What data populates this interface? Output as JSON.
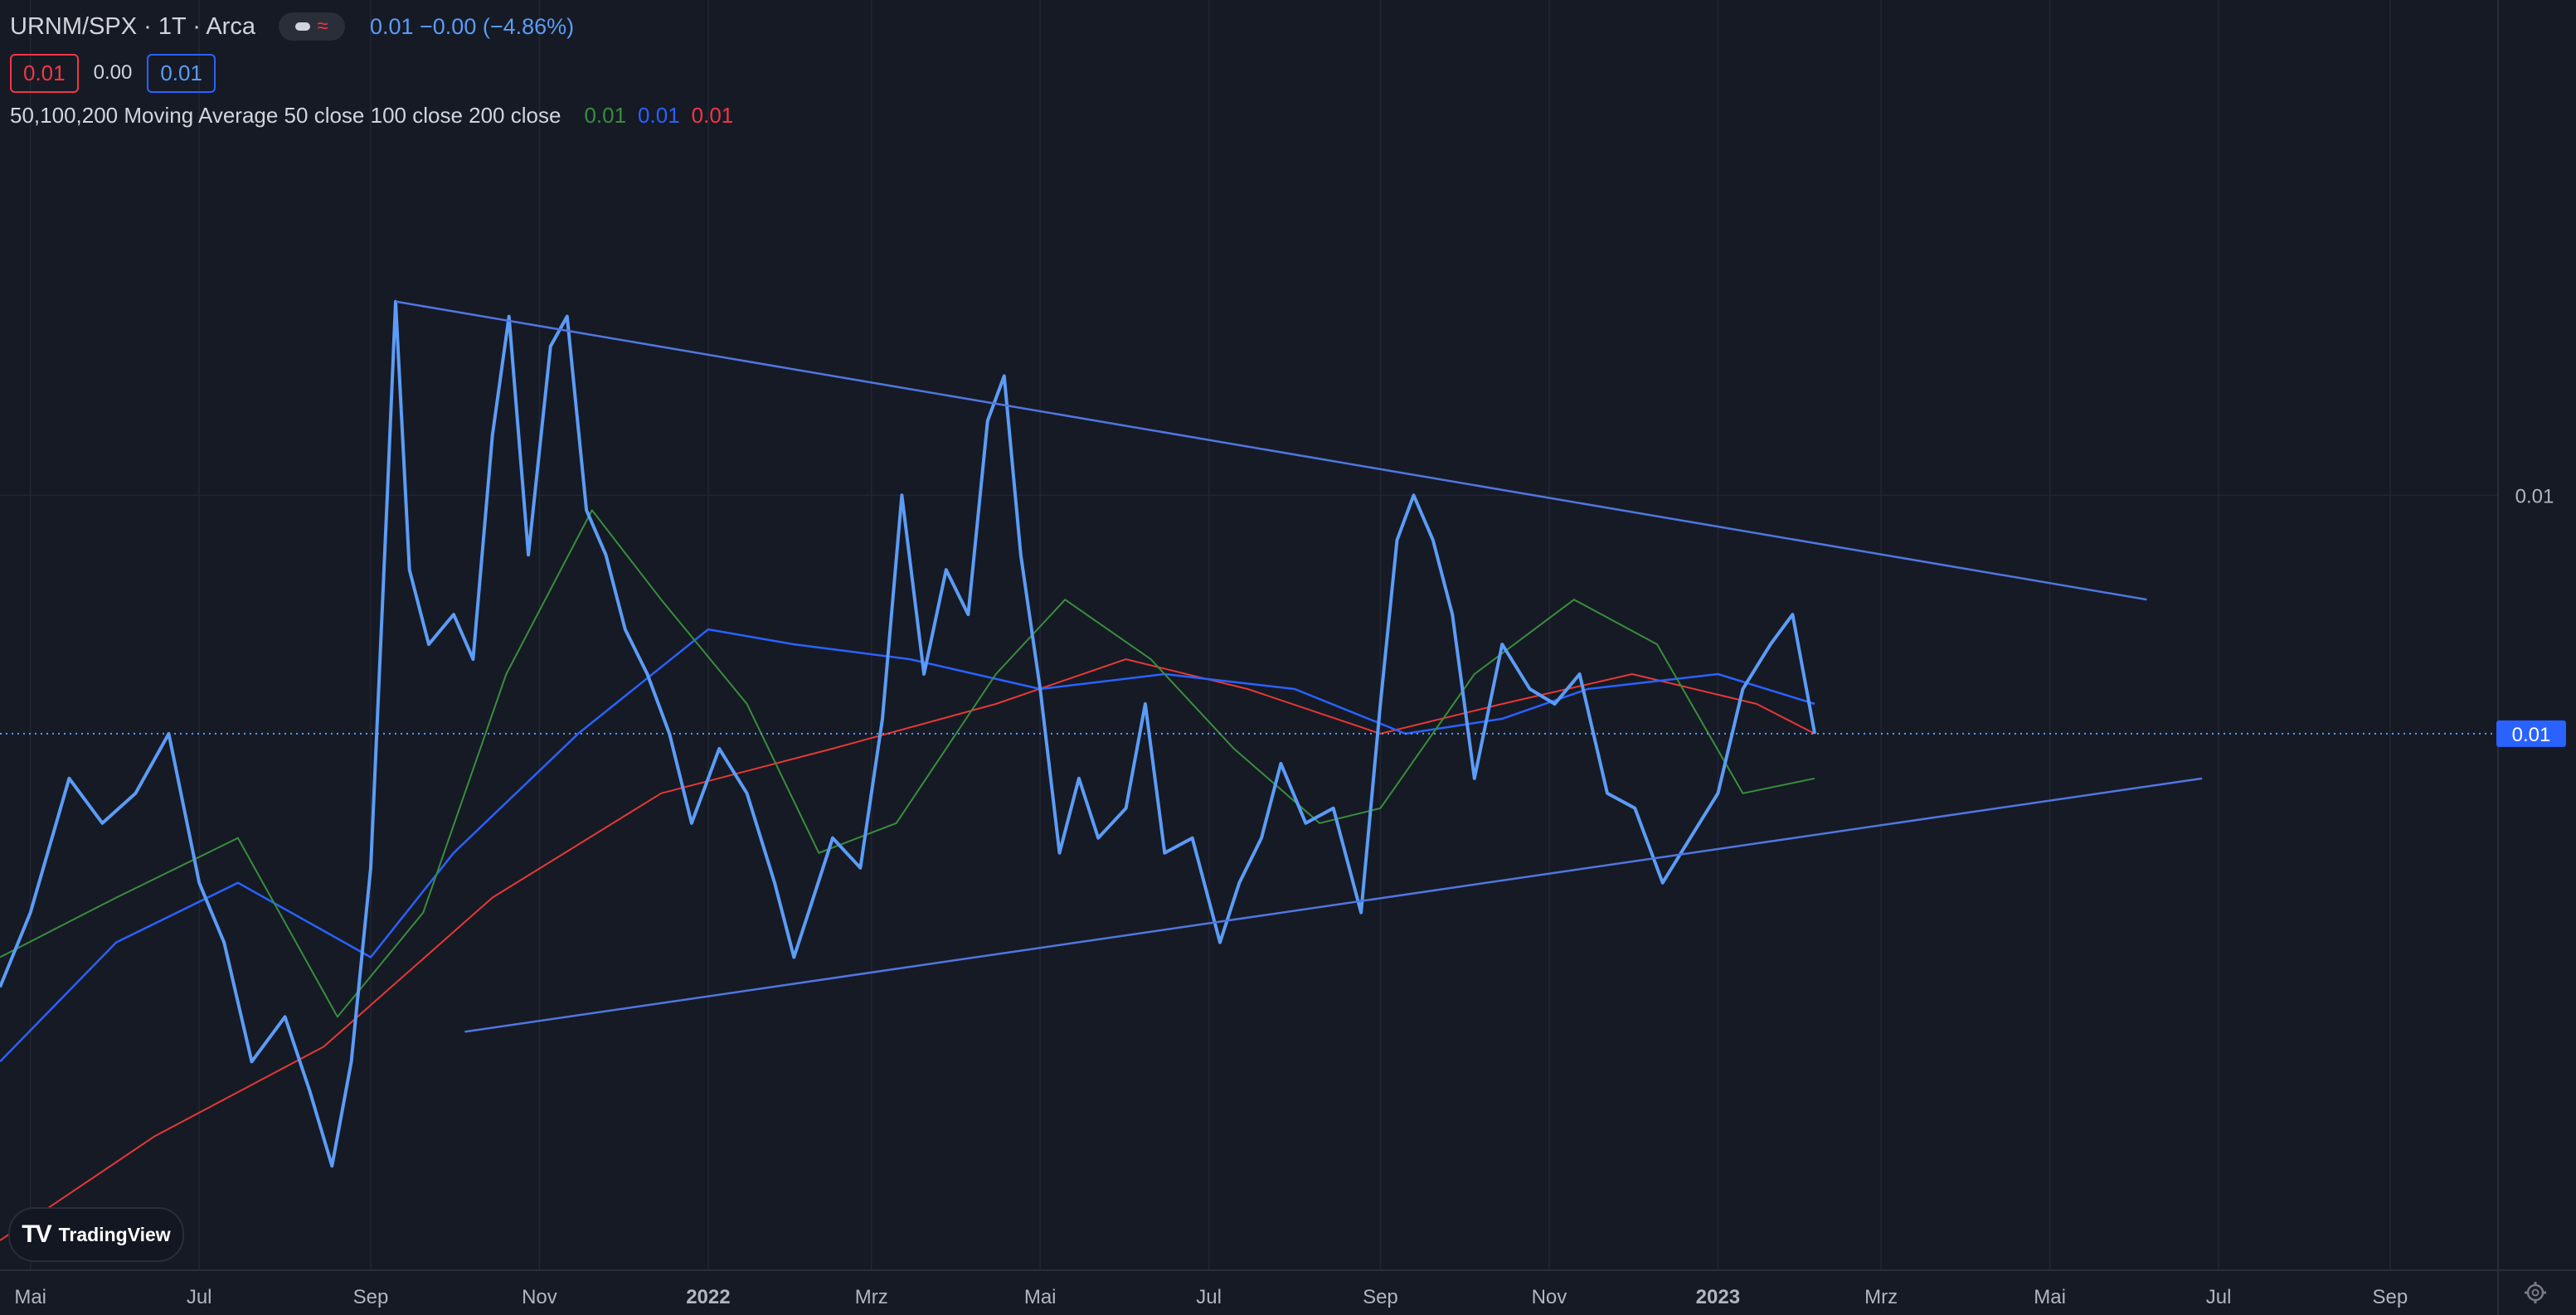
{
  "header": {
    "symbol": "URNM/SPX · 1T · Arca",
    "quote": "0.01  −0.00 (−4.86%)",
    "box_red": "0.01",
    "mid_value": "0.00",
    "box_blue": "0.01"
  },
  "indicator": {
    "label": "50,100,200 Moving Average 50 close 100 close 200 close",
    "values": [
      "0.01",
      "0.01",
      "0.01"
    ],
    "colors": [
      "#388e3c",
      "#2962ff",
      "#f23645"
    ]
  },
  "logo_text": "TradingView",
  "icons": {
    "settings": "gear-icon",
    "logo": "tradingview-logo"
  },
  "colors": {
    "price": "#5b9cf6",
    "ma50": "#388e3c",
    "ma100": "#2962ff",
    "ma200": "#e53935",
    "background": "#161a25"
  },
  "chart_data": {
    "type": "line",
    "y_axis_labels": [
      "0.01",
      "0.01"
    ],
    "last_price_label": "0.01",
    "x_tick_labels": [
      "Mai",
      "Jul",
      "Sep",
      "Nov",
      "2022",
      "Mrz",
      "Mai",
      "Jul",
      "Sep",
      "Nov",
      "2023",
      "Mrz",
      "Mai",
      "Jul",
      "Sep"
    ],
    "x_tick_dates": [
      "2021-05-01",
      "2021-07-01",
      "2021-09-01",
      "2021-11-01",
      "2022-01-01",
      "2022-03-01",
      "2022-05-01",
      "2022-07-01",
      "2022-09-01",
      "2022-11-01",
      "2023-01-01",
      "2023-03-01",
      "2023-05-01",
      "2023-07-01",
      "2023-09-01"
    ],
    "bold_ticks": [
      "2022",
      "2023"
    ],
    "series": [
      {
        "points": [
          [
            "2021-04-20",
            0.0117
          ],
          [
            "2021-05-01",
            0.0122
          ],
          [
            "2021-05-15",
            0.0131
          ],
          [
            "2021-05-27",
            0.0128
          ],
          [
            "2021-06-08",
            0.013
          ],
          [
            "2021-06-20",
            0.0134
          ],
          [
            "2021-07-01",
            0.0124
          ],
          [
            "2021-07-10",
            0.012
          ],
          [
            "2021-07-20",
            0.0112
          ],
          [
            "2021-08-01",
            0.0115
          ],
          [
            "2021-08-10",
            0.011
          ],
          [
            "2021-08-18",
            0.0105
          ],
          [
            "2021-08-25",
            0.0112
          ],
          [
            "2021-09-01",
            0.0125
          ],
          [
            "2021-09-07",
            0.015
          ],
          [
            "2021-09-10",
            0.0163
          ],
          [
            "2021-09-15",
            0.0145
          ],
          [
            "2021-09-22",
            0.014
          ],
          [
            "2021-10-01",
            0.0142
          ],
          [
            "2021-10-08",
            0.0139
          ],
          [
            "2021-10-15",
            0.0154
          ],
          [
            "2021-10-21",
            0.0162
          ],
          [
            "2021-10-28",
            0.0146
          ],
          [
            "2021-11-05",
            0.016
          ],
          [
            "2021-11-11",
            0.0162
          ],
          [
            "2021-11-18",
            0.0149
          ],
          [
            "2021-11-25",
            0.0146
          ],
          [
            "2021-12-02",
            0.0141
          ],
          [
            "2021-12-10",
            0.0138
          ],
          [
            "2021-12-18",
            0.0134
          ],
          [
            "2021-12-26",
            0.0128
          ],
          [
            "2022-01-05",
            0.0133
          ],
          [
            "2022-01-15",
            0.013
          ],
          [
            "2022-01-25",
            0.0124
          ],
          [
            "2022-02-01",
            0.0119
          ],
          [
            "2022-02-08",
            0.0123
          ],
          [
            "2022-02-15",
            0.0127
          ],
          [
            "2022-02-25",
            0.0125
          ],
          [
            "2022-03-05",
            0.0135
          ],
          [
            "2022-03-12",
            0.015
          ],
          [
            "2022-03-20",
            0.0138
          ],
          [
            "2022-03-28",
            0.0145
          ],
          [
            "2022-04-05",
            0.0142
          ],
          [
            "2022-04-12",
            0.0155
          ],
          [
            "2022-04-18",
            0.0158
          ],
          [
            "2022-04-24",
            0.0146
          ],
          [
            "2022-05-01",
            0.0137
          ],
          [
            "2022-05-08",
            0.0126
          ],
          [
            "2022-05-15",
            0.0131
          ],
          [
            "2022-05-22",
            0.0127
          ],
          [
            "2022-06-01",
            0.0129
          ],
          [
            "2022-06-08",
            0.0136
          ],
          [
            "2022-06-15",
            0.0126
          ],
          [
            "2022-06-25",
            0.0127
          ],
          [
            "2022-07-05",
            0.012
          ],
          [
            "2022-07-12",
            0.0124
          ],
          [
            "2022-07-20",
            0.0127
          ],
          [
            "2022-07-27",
            0.0132
          ],
          [
            "2022-08-05",
            0.0128
          ],
          [
            "2022-08-15",
            0.0129
          ],
          [
            "2022-08-25",
            0.0122
          ],
          [
            "2022-09-01",
            0.0136
          ],
          [
            "2022-09-07",
            0.0147
          ],
          [
            "2022-09-13",
            0.015
          ],
          [
            "2022-09-20",
            0.0147
          ],
          [
            "2022-09-27",
            0.0142
          ],
          [
            "2022-10-05",
            0.0131
          ],
          [
            "2022-10-15",
            0.014
          ],
          [
            "2022-10-25",
            0.0137
          ],
          [
            "2022-11-03",
            0.0136
          ],
          [
            "2022-11-12",
            0.0138
          ],
          [
            "2022-11-22",
            0.013
          ],
          [
            "2022-12-02",
            0.0129
          ],
          [
            "2022-12-12",
            0.0124
          ],
          [
            "2022-12-22",
            0.0127
          ],
          [
            "2023-01-01",
            0.013
          ],
          [
            "2023-01-10",
            0.0137
          ],
          [
            "2023-01-20",
            0.014
          ],
          [
            "2023-01-28",
            0.0142
          ],
          [
            "2023-02-05",
            0.0134
          ]
        ]
      },
      {
        "name": "50 close",
        "points": [
          [
            "2021-04-20",
            0.0119
          ],
          [
            "2021-06-01",
            0.0123
          ],
          [
            "2021-07-15",
            0.0127
          ],
          [
            "2021-08-20",
            0.0115
          ],
          [
            "2021-09-20",
            0.0122
          ],
          [
            "2021-10-20",
            0.0138
          ],
          [
            "2021-11-20",
            0.0149
          ],
          [
            "2021-12-15",
            0.0143
          ],
          [
            "2022-01-15",
            0.0136
          ],
          [
            "2022-02-10",
            0.0126
          ],
          [
            "2022-03-10",
            0.0128
          ],
          [
            "2022-04-15",
            0.0138
          ],
          [
            "2022-05-10",
            0.0143
          ],
          [
            "2022-06-10",
            0.0139
          ],
          [
            "2022-07-10",
            0.0133
          ],
          [
            "2022-08-10",
            0.0128
          ],
          [
            "2022-09-01",
            0.0129
          ],
          [
            "2022-10-05",
            0.0138
          ],
          [
            "2022-11-10",
            0.0143
          ],
          [
            "2022-12-10",
            0.014
          ],
          [
            "2023-01-10",
            0.013
          ],
          [
            "2023-02-05",
            0.0131
          ]
        ]
      },
      {
        "name": "100 close",
        "points": [
          [
            "2021-04-20",
            0.0112
          ],
          [
            "2021-06-01",
            0.012
          ],
          [
            "2021-07-15",
            0.0124
          ],
          [
            "2021-09-01",
            0.0119
          ],
          [
            "2021-10-01",
            0.0126
          ],
          [
            "2021-11-15",
            0.0134
          ],
          [
            "2022-01-01",
            0.0141
          ],
          [
            "2022-02-01",
            0.014
          ],
          [
            "2022-03-15",
            0.0139
          ],
          [
            "2022-05-01",
            0.0137
          ],
          [
            "2022-06-15",
            0.0138
          ],
          [
            "2022-08-01",
            0.0137
          ],
          [
            "2022-09-10",
            0.0134
          ],
          [
            "2022-10-15",
            0.0135
          ],
          [
            "2022-11-15",
            0.0137
          ],
          [
            "2023-01-01",
            0.0138
          ],
          [
            "2023-02-05",
            0.0136
          ]
        ]
      },
      {
        "name": "200 close",
        "points": [
          [
            "2021-04-20",
            0.01
          ],
          [
            "2021-06-15",
            0.0107
          ],
          [
            "2021-08-15",
            0.0113
          ],
          [
            "2021-10-15",
            0.0123
          ],
          [
            "2021-12-15",
            0.013
          ],
          [
            "2022-02-15",
            0.0133
          ],
          [
            "2022-04-15",
            0.0136
          ],
          [
            "2022-06-01",
            0.0139
          ],
          [
            "2022-07-15",
            0.0137
          ],
          [
            "2022-09-01",
            0.0134
          ],
          [
            "2022-10-15",
            0.0136
          ],
          [
            "2022-12-01",
            0.0138
          ],
          [
            "2023-01-15",
            0.0136
          ],
          [
            "2023-02-05",
            0.0134
          ]
        ]
      }
    ],
    "trendlines": [
      {
        "from": [
          "2021-09-10",
          0.0163
        ],
        "to": [
          "2023-06-05",
          0.0143
        ]
      },
      {
        "from": [
          "2021-10-05",
          0.0114
        ],
        "to": [
          "2023-06-25",
          0.0131
        ]
      }
    ],
    "ylim": [
      0.0098,
      0.0176
    ],
    "xlim": [
      "2021-04-20",
      "2023-10-10"
    ],
    "grid": true,
    "last_price": 0.0134
  }
}
